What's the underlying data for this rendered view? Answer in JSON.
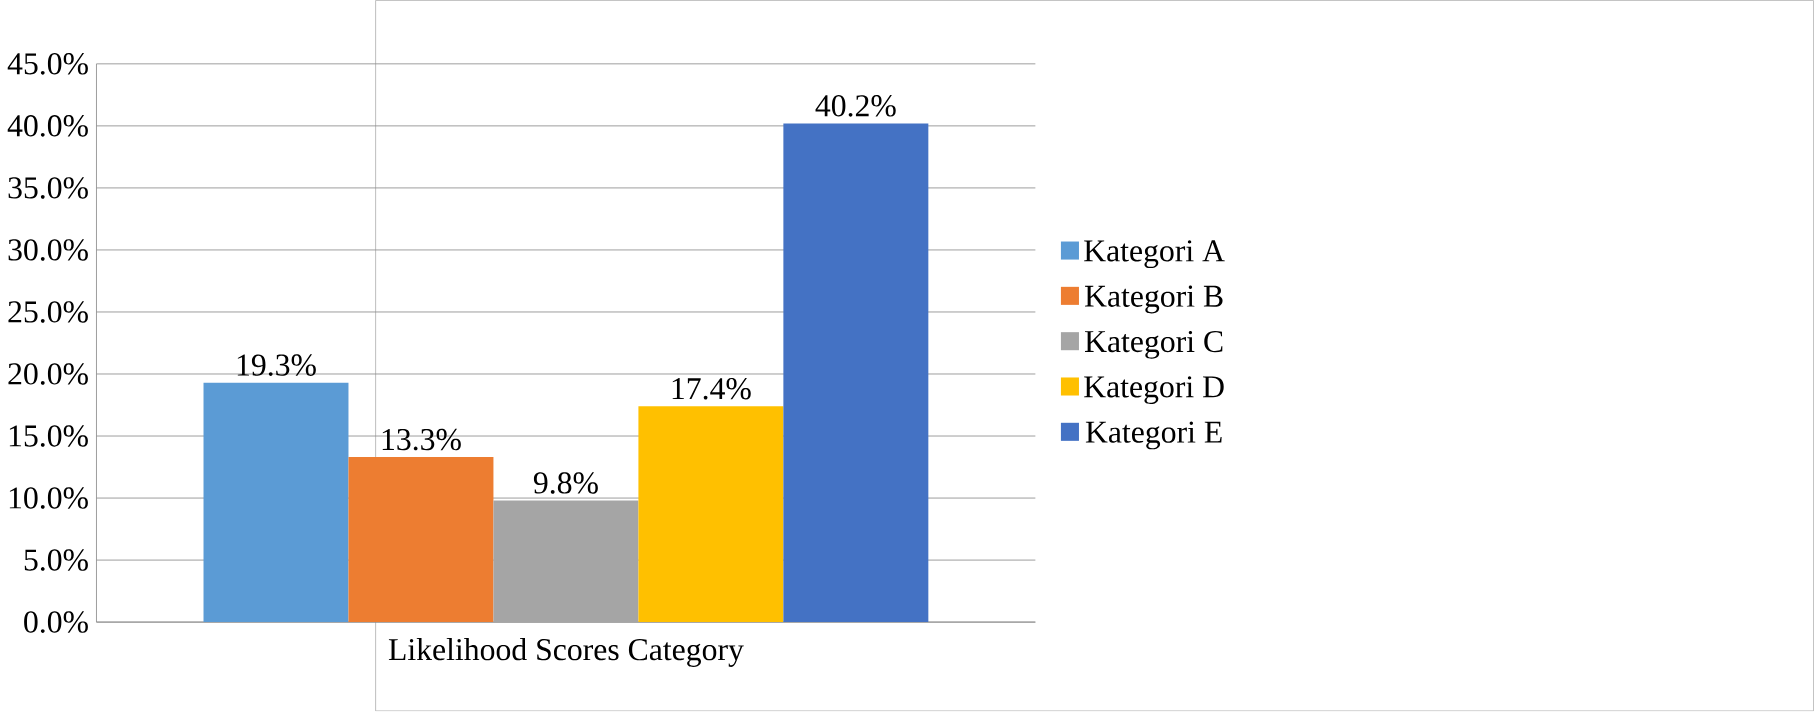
{
  "chart_data": {
    "type": "bar",
    "categories": [
      "Likelihood Scores Category"
    ],
    "series": [
      {
        "name": "Kategori A",
        "color": "#5b9bd5",
        "values": [
          19.3
        ],
        "value_labels": [
          "19.3%"
        ]
      },
      {
        "name": "Kategori B",
        "color": "#ed7d31",
        "values": [
          13.3
        ],
        "value_labels": [
          "13.3%"
        ]
      },
      {
        "name": "Kategori C",
        "color": "#a5a5a5",
        "values": [
          9.8
        ],
        "value_labels": [
          "9.8%"
        ]
      },
      {
        "name": "Kategori D",
        "color": "#ffc000",
        "values": [
          17.4
        ],
        "value_labels": [
          "17.4%"
        ]
      },
      {
        "name": "Kategori E",
        "color": "#4472c4",
        "values": [
          40.2
        ],
        "value_labels": [
          "40.2%"
        ]
      }
    ],
    "ylim": [
      0,
      45
    ],
    "yticks": [
      {
        "value": 0,
        "label": "0.0%"
      },
      {
        "value": 5,
        "label": "5.0%"
      },
      {
        "value": 10,
        "label": "10.0%"
      },
      {
        "value": 15,
        "label": "15.0%"
      },
      {
        "value": 20,
        "label": "20.0%"
      },
      {
        "value": 25,
        "label": "25.0%"
      },
      {
        "value": 30,
        "label": "30.0%"
      },
      {
        "value": 35,
        "label": "35.0%"
      },
      {
        "value": 40,
        "label": "40.0%"
      },
      {
        "value": 45,
        "label": "45.0%"
      }
    ],
    "grid": "y",
    "legend": "right"
  }
}
